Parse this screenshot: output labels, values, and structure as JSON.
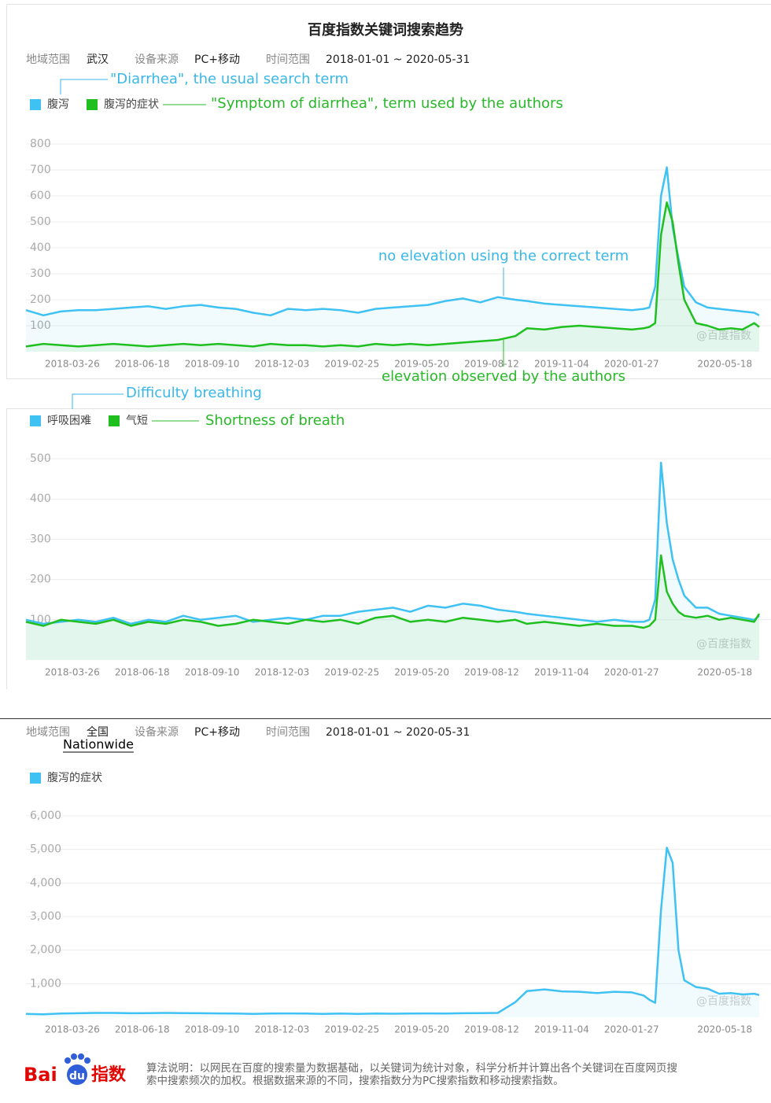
{
  "chart_data": [
    {
      "type": "line",
      "title": "百度指数关键词搜索趋势",
      "filters": [
        {
          "label": "地域范围",
          "value": "武汉"
        },
        {
          "label": "设备来源",
          "value": "PC+移动"
        },
        {
          "label": "时间范围",
          "value": "2018-01-01 ~ 2020-05-31"
        }
      ],
      "x": [
        "2018-01-01",
        "2018-01-22",
        "2018-02-12",
        "2018-03-05",
        "2018-03-26",
        "2018-04-16",
        "2018-05-07",
        "2018-05-28",
        "2018-06-18",
        "2018-07-09",
        "2018-07-30",
        "2018-08-20",
        "2018-09-10",
        "2018-10-01",
        "2018-10-22",
        "2018-11-12",
        "2018-12-03",
        "2018-12-24",
        "2019-01-14",
        "2019-02-04",
        "2019-02-25",
        "2019-03-18",
        "2019-04-08",
        "2019-04-29",
        "2019-05-20",
        "2019-06-10",
        "2019-07-01",
        "2019-07-22",
        "2019-08-12",
        "2019-08-26",
        "2019-09-16",
        "2019-10-07",
        "2019-10-28",
        "2019-11-18",
        "2019-12-09",
        "2019-12-30",
        "2020-01-13",
        "2020-01-20",
        "2020-01-27",
        "2020-02-03",
        "2020-02-10",
        "2020-02-17",
        "2020-02-24",
        "2020-03-02",
        "2020-03-16",
        "2020-03-30",
        "2020-04-13",
        "2020-04-27",
        "2020-05-11",
        "2020-05-25",
        "2020-05-31"
      ],
      "xlim": [
        "2018-01-01",
        "2020-05-31"
      ],
      "xticks": [
        "2018-03-26",
        "2018-06-18",
        "2018-09-10",
        "2018-12-03",
        "2019-02-25",
        "2019-05-20",
        "2019-08-12",
        "2019-11-04",
        "2020-01-27",
        "2020-05-18"
      ],
      "ylim": [
        0,
        800
      ],
      "yticks": [
        100,
        200,
        300,
        400,
        500,
        600,
        700,
        800
      ],
      "grid": true,
      "area": true,
      "watermark": "@百度指数",
      "series": [
        {
          "name": "腹泻",
          "color": "#3fc1f3",
          "values": [
            160,
            140,
            155,
            160,
            160,
            165,
            170,
            175,
            165,
            175,
            180,
            170,
            165,
            150,
            140,
            165,
            160,
            165,
            160,
            150,
            165,
            170,
            175,
            180,
            195,
            205,
            190,
            210,
            200,
            195,
            185,
            180,
            175,
            170,
            165,
            160,
            165,
            170,
            250,
            600,
            710,
            480,
            360,
            250,
            190,
            170,
            165,
            160,
            155,
            150,
            140
          ]
        },
        {
          "name": "腹泻的症状",
          "color": "#1fbf1f",
          "values": [
            20,
            30,
            25,
            20,
            25,
            30,
            25,
            20,
            25,
            30,
            25,
            30,
            25,
            20,
            30,
            25,
            25,
            20,
            25,
            20,
            30,
            25,
            30,
            25,
            30,
            35,
            40,
            45,
            60,
            90,
            85,
            95,
            100,
            95,
            90,
            85,
            90,
            95,
            110,
            450,
            575,
            500,
            340,
            200,
            110,
            100,
            85,
            90,
            85,
            110,
            95
          ]
        }
      ],
      "annotations": [
        {
          "text": "\"Diarrhea\", the usual search term",
          "color": "#3ab7e8"
        },
        {
          "text": "\"Symptom of diarrhea\", term used by the authors",
          "color": "#28b828"
        },
        {
          "text": "no elevation using the correct term",
          "color": "#3ab7e8"
        },
        {
          "text": "elevation observed by the authors",
          "color": "#28b828"
        }
      ]
    },
    {
      "type": "line",
      "x": [
        "2018-01-01",
        "2018-01-22",
        "2018-02-12",
        "2018-03-05",
        "2018-03-26",
        "2018-04-16",
        "2018-05-07",
        "2018-05-28",
        "2018-06-18",
        "2018-07-09",
        "2018-07-30",
        "2018-08-20",
        "2018-09-10",
        "2018-10-01",
        "2018-10-22",
        "2018-11-12",
        "2018-12-03",
        "2018-12-24",
        "2019-01-14",
        "2019-02-04",
        "2019-02-25",
        "2019-03-18",
        "2019-04-08",
        "2019-04-29",
        "2019-05-20",
        "2019-06-10",
        "2019-07-01",
        "2019-07-22",
        "2019-08-12",
        "2019-08-26",
        "2019-09-16",
        "2019-10-07",
        "2019-10-28",
        "2019-11-18",
        "2019-12-09",
        "2019-12-30",
        "2020-01-13",
        "2020-01-20",
        "2020-01-27",
        "2020-02-03",
        "2020-02-10",
        "2020-02-17",
        "2020-02-24",
        "2020-03-02",
        "2020-03-16",
        "2020-03-30",
        "2020-04-13",
        "2020-04-27",
        "2020-05-11",
        "2020-05-25",
        "2020-05-31"
      ],
      "xlim": [
        "2018-01-01",
        "2020-05-31"
      ],
      "xticks": [
        "2018-03-26",
        "2018-06-18",
        "2018-09-10",
        "2018-12-03",
        "2019-02-25",
        "2019-05-20",
        "2019-08-12",
        "2019-11-04",
        "2020-01-27",
        "2020-05-18"
      ],
      "ylim": [
        0,
        500
      ],
      "yticks": [
        100,
        200,
        300,
        400,
        500
      ],
      "grid": true,
      "area": true,
      "watermark": "@百度指数",
      "series": [
        {
          "name": "呼吸困难",
          "color": "#3fc1f3",
          "values": [
            100,
            90,
            95,
            100,
            95,
            105,
            90,
            100,
            95,
            110,
            100,
            105,
            110,
            95,
            100,
            105,
            100,
            110,
            110,
            120,
            125,
            130,
            120,
            135,
            130,
            140,
            135,
            125,
            120,
            115,
            110,
            105,
            100,
            95,
            100,
            95,
            95,
            100,
            150,
            490,
            340,
            250,
            200,
            160,
            130,
            130,
            115,
            110,
            105,
            100,
            110
          ]
        },
        {
          "name": "气短",
          "color": "#1fbf1f",
          "values": [
            95,
            85,
            100,
            95,
            90,
            100,
            85,
            95,
            90,
            100,
            95,
            85,
            90,
            100,
            95,
            90,
            100,
            95,
            100,
            90,
            105,
            110,
            95,
            100,
            95,
            105,
            100,
            95,
            100,
            90,
            95,
            90,
            85,
            90,
            85,
            85,
            80,
            85,
            100,
            260,
            170,
            140,
            120,
            110,
            105,
            110,
            100,
            105,
            100,
            95,
            115
          ]
        }
      ],
      "annotations": [
        {
          "text": "Difficulty breathing",
          "color": "#3ab7e8"
        },
        {
          "text": "Shortness of breath",
          "color": "#28b828"
        }
      ]
    },
    {
      "type": "line",
      "filters": [
        {
          "label": "地域范围",
          "value": "全国"
        },
        {
          "label": "设备来源",
          "value": "PC+移动"
        },
        {
          "label": "时间范围",
          "value": "2018-01-01 ~ 2020-05-31"
        }
      ],
      "x": [
        "2018-01-01",
        "2018-01-22",
        "2018-02-12",
        "2018-03-05",
        "2018-03-26",
        "2018-04-16",
        "2018-05-07",
        "2018-05-28",
        "2018-06-18",
        "2018-07-09",
        "2018-07-30",
        "2018-08-20",
        "2018-09-10",
        "2018-10-01",
        "2018-10-22",
        "2018-11-12",
        "2018-12-03",
        "2018-12-24",
        "2019-01-14",
        "2019-02-04",
        "2019-02-25",
        "2019-03-18",
        "2019-04-08",
        "2019-04-29",
        "2019-05-20",
        "2019-06-10",
        "2019-07-01",
        "2019-07-22",
        "2019-08-12",
        "2019-08-26",
        "2019-09-16",
        "2019-10-07",
        "2019-10-28",
        "2019-11-18",
        "2019-12-09",
        "2019-12-30",
        "2020-01-13",
        "2020-01-20",
        "2020-01-27",
        "2020-02-03",
        "2020-02-10",
        "2020-02-17",
        "2020-02-24",
        "2020-03-02",
        "2020-03-16",
        "2020-03-30",
        "2020-04-13",
        "2020-04-27",
        "2020-05-11",
        "2020-05-25",
        "2020-05-31"
      ],
      "xlim": [
        "2018-01-01",
        "2020-05-31"
      ],
      "xticks": [
        "2018-03-26",
        "2018-06-18",
        "2018-09-10",
        "2018-12-03",
        "2019-02-25",
        "2019-05-20",
        "2019-08-12",
        "2019-11-04",
        "2020-01-27",
        "2020-05-18"
      ],
      "ylim": [
        0,
        6000
      ],
      "yticks": [
        {
          "value": 1000,
          "label": "1,000"
        },
        {
          "value": 2000,
          "label": "2,000"
        },
        {
          "value": 3000,
          "label": "3,000"
        },
        {
          "value": 4000,
          "label": "4,000"
        },
        {
          "value": 5000,
          "label": "5,000"
        },
        {
          "value": 6000,
          "label": "6,000"
        }
      ],
      "grid": true,
      "area": true,
      "watermark": "@百度指数",
      "series": [
        {
          "name": "腹泻的症状",
          "color": "#3fc1f3",
          "values": [
            100,
            90,
            110,
            120,
            130,
            130,
            120,
            125,
            130,
            125,
            120,
            115,
            110,
            100,
            110,
            115,
            110,
            100,
            110,
            100,
            110,
            105,
            110,
            115,
            110,
            120,
            125,
            130,
            450,
            780,
            830,
            770,
            760,
            720,
            760,
            740,
            650,
            520,
            430,
            3200,
            5050,
            4600,
            2000,
            1100,
            900,
            850,
            700,
            720,
            680,
            700,
            660
          ]
        }
      ],
      "annotations": [
        {
          "text": "Nationwide",
          "color": "#000000"
        }
      ]
    }
  ],
  "footer": {
    "logo": [
      "Bai",
      "du",
      "指数"
    ],
    "note": [
      "算法说明：以网民在百度的搜索量为数据基础，以关键词为统计对象，科学分析并计算出各个关键词在百度网页搜",
      "索中搜索频次的加权。根据数据来源的不同，搜索指数分为PC搜索指数和移动搜索指数。"
    ]
  }
}
